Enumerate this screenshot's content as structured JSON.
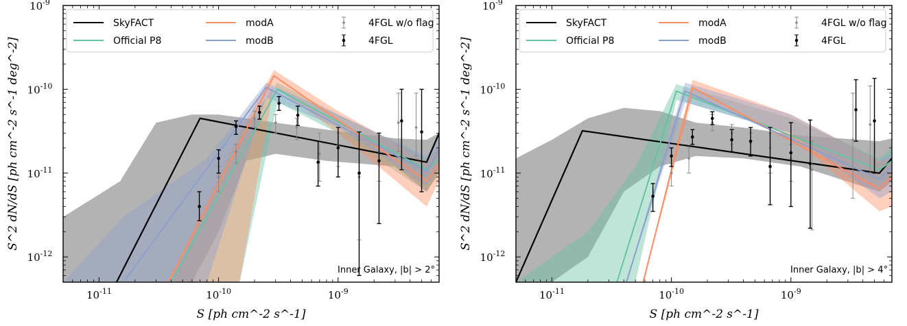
{
  "colors": {
    "skyfact": "#000000",
    "skyfact_band": "#a6a6a6",
    "official_p8": "#66c2a5",
    "moda": "#fc8d62",
    "modb": "#8da0cb",
    "fgl": "#000000",
    "fgl_noflag": "#888888"
  },
  "chart_data": [
    {
      "type": "line",
      "xlabel": "S [ph cm^-2 s^-1]",
      "ylabel": "S^2 dN/dS [ph cm^-2 s^-1 deg^-2]",
      "xscale": "log",
      "yscale": "log",
      "xlim": [
        5e-12,
        7e-09
      ],
      "ylim": [
        5e-13,
        1e-09
      ],
      "x_ticks": [
        1e-11,
        1e-10,
        1e-09
      ],
      "x_tick_labels": [
        "10^-11",
        "10^-10",
        "10^-9"
      ],
      "y_ticks": [
        1e-12,
        1e-11,
        1e-10,
        1e-09
      ],
      "y_tick_labels": [
        "10^-12",
        "10^-11",
        "10^-10",
        "10^-9"
      ],
      "annotation": "Inner Galaxy, |b| > 2°",
      "legend": {
        "placement": "top-left",
        "columns": 3,
        "entries": [
          "SkyFACT",
          "Official P8",
          "modA",
          "modB",
          "4FGL w/o flag",
          "4FGL"
        ]
      },
      "series": [
        {
          "name": "SkyFACT",
          "x": [
            1.4e-11,
            7e-11,
            5.5e-09,
            7e-09
          ],
          "y": [
            5e-13,
            4.5e-11,
            1.35e-11,
            3e-11
          ],
          "band_upper": [
            3e-12,
            8e-12,
            4e-11,
            5e-11,
            5e-11,
            4.5e-11,
            4e-11,
            3.3e-11,
            2.6e-11,
            2.5e-11,
            3e-11
          ],
          "band_lower": [
            5e-13,
            5e-13,
            5e-13,
            5e-13,
            2e-12,
            1.4e-11,
            1.7e-11,
            1.4e-11,
            1.2e-11,
            6e-12,
            1e-11
          ],
          "band_x": [
            5e-12,
            1.5e-11,
            3e-11,
            6e-11,
            1e-10,
            1.7e-10,
            3e-10,
            8e-10,
            3e-09,
            5.5e-09,
            7e-09
          ]
        },
        {
          "name": "Official P8",
          "x": [
            4e-11,
            3.1e-10,
            5.5e-09,
            7e-09
          ],
          "y": [
            5e-13,
            1e-10,
            1.1e-11,
            1.5e-11
          ]
        },
        {
          "name": "modA",
          "x": [
            3.8e-11,
            2.9e-10,
            5.5e-09,
            7e-09
          ],
          "y": [
            5e-13,
            1.45e-10,
            8e-12,
            1.3e-11
          ]
        },
        {
          "name": "modB",
          "x": [
            1.6e-11,
            2.5e-10,
            5.5e-09,
            7e-09
          ],
          "y": [
            5e-13,
            1.05e-10,
            1.05e-11,
            1.9e-11
          ]
        },
        {
          "name": "4FGL w/o flag",
          "x": [
            1e-10,
            1.4e-10,
            2e-10,
            3e-10,
            4.5e-10,
            7e-10,
            1e-09,
            1.5e-09,
            2.2e-09,
            3.2e-09,
            4.5e-09
          ],
          "y": [
            9e-12,
            1.8e-11,
            4.5e-11,
            4e-11,
            3.5e-11,
            1.7e-11,
            2.2e-11,
            9e-12,
            1.8e-11,
            4e-11,
            3.5e-11
          ],
          "y_lo": [
            6e-12,
            1.3e-11,
            3.5e-11,
            3e-11,
            2.5e-11,
            8e-12,
            1.2e-11,
            1.6e-12,
            8e-12,
            1.8e-11,
            1.6e-11
          ],
          "y_hi": [
            1.2e-11,
            2.2e-11,
            5.5e-11,
            5e-11,
            4.5e-11,
            3e-11,
            3e-11,
            2.5e-11,
            2.8e-11,
            9e-11,
            9e-11
          ]
        },
        {
          "name": "4FGL",
          "x": [
            6.9e-11,
            1e-10,
            1.4e-10,
            2.2e-10,
            3.2e-10,
            4.6e-10,
            6.8e-10,
            1e-09,
            1.5e-09,
            2.2e-09,
            3.4e-09,
            5e-09
          ],
          "y": [
            4e-12,
            1.5e-11,
            3.6e-11,
            5.3e-11,
            6.8e-11,
            4.9e-11,
            1.35e-11,
            2e-11,
            1e-11,
            1.4e-11,
            4.2e-11,
            3.1e-11
          ],
          "y_lo": [
            2.7e-12,
            1e-11,
            2.9e-11,
            4.4e-11,
            5.6e-11,
            3.7e-11,
            7e-12,
            9e-12,
            6e-13,
            2.5e-12,
            1.1e-11,
            6e-12
          ],
          "y_hi": [
            6e-12,
            1.9e-11,
            4.2e-11,
            6.3e-11,
            8.2e-11,
            6.3e-11,
            2.4e-11,
            3.5e-11,
            3.1e-11,
            3e-11,
            1e-10,
            1e-10
          ]
        }
      ],
      "bands": [
        {
          "name": "Official P8",
          "band_x": [
            4e-11,
            1.5e-10,
            3.1e-10,
            1e-09,
            5.5e-09,
            7e-09
          ],
          "band_upper": [
            5e-13,
            3e-11,
            1.2e-10,
            5e-11,
            1.5e-11,
            2e-11
          ],
          "band_lower": [
            5e-13,
            5e-13,
            7e-11,
            3e-11,
            6e-12,
            1e-11
          ]
        },
        {
          "name": "modA",
          "band_x": [
            3.8e-11,
            1.5e-10,
            2.9e-10,
            1e-09,
            5.5e-09,
            7e-09
          ],
          "band_upper": [
            5e-13,
            3e-11,
            1.7e-10,
            5.5e-11,
            1.4e-11,
            2e-11
          ],
          "band_lower": [
            5e-13,
            5e-13,
            1.1e-10,
            3e-11,
            4e-12,
            8e-12
          ]
        },
        {
          "name": "modB",
          "band_x": [
            5e-12,
            1.6e-11,
            8e-11,
            2.5e-10,
            1e-09,
            5.5e-09,
            7e-09
          ],
          "band_upper": [
            5e-13,
            3e-12,
            1.5e-11,
            1.2e-10,
            5e-11,
            1.6e-11,
            3e-11
          ],
          "band_lower": [
            5e-13,
            5e-13,
            5e-13,
            8e-11,
            3.5e-11,
            7e-12,
            1.2e-11
          ]
        }
      ]
    },
    {
      "type": "line",
      "xlabel": "S [ph cm^-2 s^-1]",
      "ylabel": "S^2 dN/dS [ph cm^-2 s^-1 deg^-2]",
      "xscale": "log",
      "yscale": "log",
      "xlim": [
        5e-12,
        7e-09
      ],
      "ylim": [
        5e-13,
        1e-09
      ],
      "x_ticks": [
        1e-11,
        1e-10,
        1e-09
      ],
      "x_tick_labels": [
        "10^-11",
        "10^-10",
        "10^-9"
      ],
      "y_ticks": [
        1e-12,
        1e-11,
        1e-10,
        1e-09
      ],
      "y_tick_labels": [
        "10^-12",
        "10^-11",
        "10^-10",
        "10^-9"
      ],
      "annotation": "Inner Galaxy, |b| > 4°",
      "legend": {
        "placement": "top-left",
        "columns": 3,
        "entries": [
          "SkyFACT",
          "Official P8",
          "modA",
          "modB",
          "4FGL w/o flag",
          "4FGL"
        ]
      },
      "series": [
        {
          "name": "SkyFACT",
          "x": [
            5e-12,
            1.8e-11,
            5.5e-09,
            7e-09
          ],
          "y": [
            5e-13,
            3.2e-11,
            1e-11,
            1.5e-11
          ],
          "band_upper": [
            1.5e-11,
            2.5e-11,
            4.5e-11,
            6e-11,
            5.5e-11,
            4e-11,
            3.5e-11,
            2.8e-11,
            2.4e-11,
            2.6e-11
          ],
          "band_lower": [
            5e-13,
            5e-13,
            1e-12,
            6e-12,
            1.2e-11,
            1.6e-11,
            1.5e-11,
            1.2e-11,
            6e-12,
            8e-12
          ],
          "band_x": [
            5e-12,
            1e-11,
            2e-11,
            4e-11,
            8e-11,
            1.6e-10,
            4e-10,
            1.2e-09,
            5.5e-09,
            7e-09
          ]
        },
        {
          "name": "Official P8",
          "x": [
            3.5e-11,
            1.1e-10,
            5.5e-09,
            7e-09
          ],
          "y": [
            5e-13,
            9.5e-11,
            1.1e-11,
            1.4e-11
          ]
        },
        {
          "name": "modA",
          "x": [
            5.8e-11,
            1.5e-10,
            5.5e-09,
            7e-09
          ],
          "y": [
            5e-13,
            1.05e-10,
            6.5e-12,
            9e-12
          ]
        },
        {
          "name": "modB",
          "x": [
            4.2e-11,
            1.3e-10,
            5.5e-09,
            7e-09
          ],
          "y": [
            5e-13,
            9.5e-11,
            8.5e-12,
            1.2e-11
          ]
        },
        {
          "name": "4FGL w/o flag",
          "x": [
            1e-10,
            1.4e-10,
            2.2e-10,
            3.2e-10,
            4.6e-10,
            6.7e-10,
            1e-09,
            1.5e-09,
            3.3e-09,
            4.6e-09
          ],
          "y": [
            1e-11,
            1.5e-11,
            4e-11,
            3e-11,
            2.3e-11,
            2e-11,
            1.5e-11,
            1.1e-11,
            2.5e-11,
            3.8e-11
          ],
          "y_lo": [
            7e-12,
            1e-11,
            3.2e-11,
            2.2e-11,
            1.6e-11,
            1e-11,
            8e-12,
            2.1e-12,
            5e-12,
            1e-11
          ],
          "y_hi": [
            1.3e-11,
            2e-11,
            5e-11,
            3.8e-11,
            3e-11,
            3e-11,
            2.2e-11,
            2.4e-11,
            9e-11,
            1.1e-10
          ]
        },
        {
          "name": "4FGL",
          "x": [
            7e-11,
            1e-10,
            1.5e-10,
            2.2e-10,
            3.2e-10,
            4.6e-10,
            6.7e-10,
            1e-09,
            1.45e-09,
            3.5e-09,
            5e-09
          ],
          "y": [
            5.3e-12,
            1.6e-11,
            2.7e-11,
            4.5e-11,
            2.5e-11,
            2.4e-11,
            1.2e-11,
            1.75e-11,
            1.3e-11,
            5.7e-11,
            4.2e-11
          ],
          "y_lo": [
            3.5e-12,
            1.2e-11,
            2.2e-11,
            3.8e-11,
            1.8e-11,
            1.6e-11,
            4.2e-12,
            4e-12,
            2.2e-12,
            2.4e-11,
            1e-11
          ],
          "y_hi": [
            7.5e-12,
            2e-11,
            3.3e-11,
            5.4e-11,
            3.3e-11,
            3.5e-11,
            3.5e-11,
            4e-11,
            4.3e-11,
            1.3e-10,
            1.35e-10
          ]
        }
      ],
      "bands": [
        {
          "name": "Official P8",
          "band_x": [
            5e-12,
            2e-11,
            5e-11,
            1.1e-10,
            1e-09,
            5.5e-09,
            7e-09
          ],
          "band_upper": [
            5e-13,
            2e-12,
            1.2e-11,
            1.15e-10,
            4.5e-11,
            1.5e-11,
            2e-11
          ],
          "band_lower": [
            5e-13,
            5e-13,
            5e-13,
            7.5e-11,
            3e-11,
            7e-12,
            9e-12
          ]
        },
        {
          "name": "modA",
          "band_x": [
            5.8e-11,
            1.5e-10,
            1e-09,
            5.5e-09,
            7e-09
          ],
          "band_upper": [
            5e-13,
            1.3e-10,
            5e-11,
            1.4e-11,
            1.5e-11
          ],
          "band_lower": [
            5e-13,
            8e-11,
            2.7e-11,
            3.5e-12,
            4e-12
          ]
        },
        {
          "name": "modB",
          "band_x": [
            4.2e-11,
            1.3e-10,
            1e-09,
            5.5e-09,
            7e-09
          ],
          "band_upper": [
            5e-13,
            1.2e-10,
            5e-11,
            1.4e-11,
            1.8e-11
          ],
          "band_lower": [
            5e-13,
            7e-11,
            3e-11,
            5e-12,
            6e-12
          ]
        }
      ]
    }
  ]
}
